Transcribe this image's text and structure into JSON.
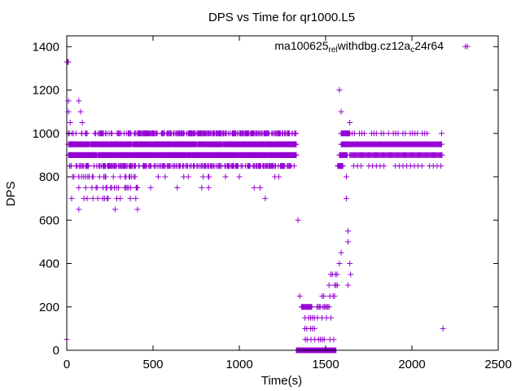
{
  "chart_data": {
    "type": "scatter",
    "title": "DPS vs Time for qr1000.L5",
    "xlabel": "Time(s)",
    "ylabel": "DPS",
    "xlim": [
      0,
      2500
    ],
    "ylim": [
      0,
      1450
    ],
    "xticks": [
      "0",
      "500",
      "1000",
      "1500",
      "2000",
      "2500"
    ],
    "yticks": [
      "0",
      "200",
      "400",
      "600",
      "800",
      "1000",
      "1200",
      "1400"
    ],
    "grid": false,
    "legend_position": "top-right",
    "marker": "plus",
    "series": [
      {
        "name_parts": [
          "ma100625",
          "rel",
          "withdbg.cz12a",
          "c",
          "24r64"
        ],
        "color": "#9400d3"
      }
    ],
    "levels": [
      0,
      50,
      100,
      150,
      200,
      250,
      300,
      350,
      400,
      450,
      500,
      550,
      600,
      650,
      700,
      750,
      800,
      850,
      900,
      950,
      1000,
      1050,
      1100,
      1150,
      1200,
      1400
    ],
    "bands": [
      [
        0,
        10,
        1330,
        3
      ],
      [
        1330,
        1560,
        0,
        1
      ],
      [
        1360,
        1550,
        50,
        11
      ],
      [
        1570,
        1600,
        850,
        3
      ],
      [
        1580,
        1625,
        900,
        3
      ],
      [
        1590,
        1640,
        950,
        3
      ],
      [
        1590,
        1640,
        1000,
        3
      ],
      [
        1640,
        2175,
        1000,
        14
      ],
      [
        1640,
        2175,
        950,
        4
      ],
      [
        1640,
        2175,
        900,
        5
      ],
      [
        1640,
        2175,
        850,
        22
      ],
      [
        1360,
        1420,
        200,
        4
      ],
      [
        1450,
        1520,
        200,
        7
      ],
      [
        1380,
        1440,
        100,
        11
      ],
      [
        1380,
        1440,
        150,
        11
      ],
      [
        1440,
        1540,
        150,
        13
      ],
      [
        1480,
        1560,
        250,
        9
      ],
      [
        1520,
        1570,
        300,
        8
      ],
      [
        1530,
        1580,
        350,
        9
      ]
    ],
    "points": [
      [
        0,
        50
      ],
      [
        10,
        1150
      ],
      [
        10,
        1100
      ],
      [
        20,
        1050
      ],
      [
        30,
        1000
      ],
      [
        40,
        950
      ],
      [
        45,
        900
      ],
      [
        60,
        850
      ],
      [
        70,
        800
      ],
      [
        70,
        750
      ],
      [
        70,
        650
      ],
      [
        70,
        1150
      ],
      [
        80,
        1100
      ],
      [
        90,
        1050
      ],
      [
        110,
        1000
      ],
      [
        110,
        850
      ],
      [
        130,
        800
      ],
      [
        150,
        800
      ],
      [
        170,
        750
      ],
      [
        190,
        800
      ],
      [
        210,
        750
      ],
      [
        220,
        700
      ],
      [
        240,
        700
      ],
      [
        260,
        750
      ],
      [
        270,
        800
      ],
      [
        280,
        650
      ],
      [
        290,
        700
      ],
      [
        300,
        750
      ],
      [
        310,
        800
      ],
      [
        320,
        850
      ],
      [
        340,
        850
      ],
      [
        360,
        1000
      ],
      [
        380,
        850
      ],
      [
        390,
        800
      ],
      [
        400,
        700
      ],
      [
        410,
        650
      ],
      [
        410,
        750
      ],
      [
        420,
        850
      ],
      [
        530,
        800
      ],
      [
        640,
        750
      ],
      [
        1340,
        600
      ],
      [
        1350,
        250
      ],
      [
        1580,
        1200
      ],
      [
        1590,
        1100
      ],
      [
        1640,
        1050
      ],
      [
        1620,
        800
      ],
      [
        1620,
        700
      ],
      [
        1630,
        550
      ],
      [
        1630,
        500
      ],
      [
        1630,
        300
      ],
      [
        1640,
        400
      ],
      [
        1645,
        350
      ],
      [
        1580,
        400
      ],
      [
        1590,
        450
      ],
      [
        2180,
        100
      ],
      [
        2310,
        1400
      ]
    ]
  }
}
